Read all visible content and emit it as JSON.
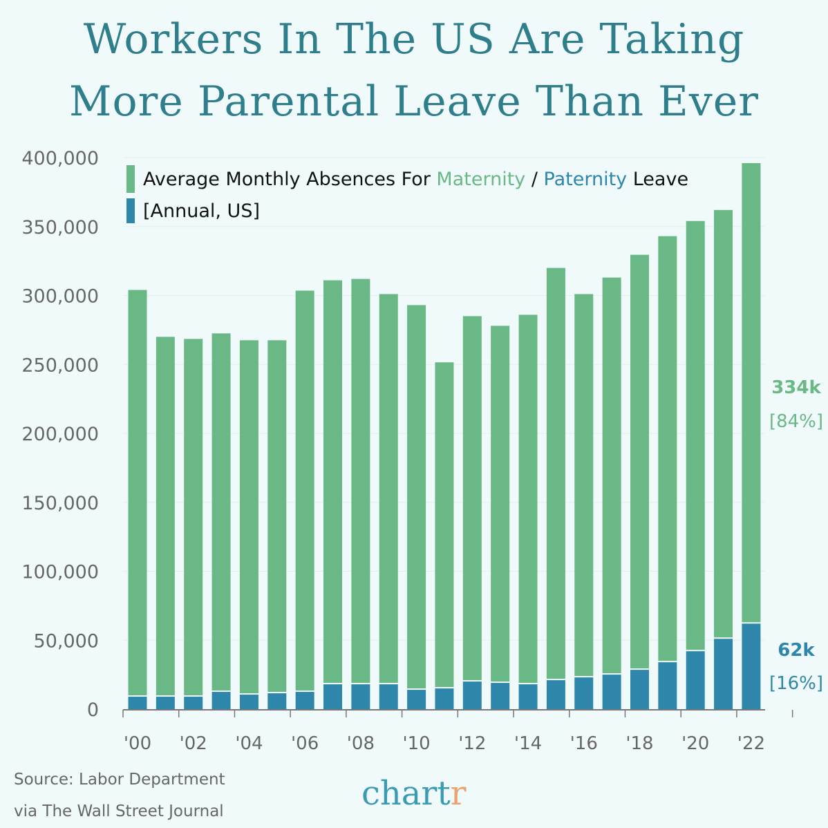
{
  "title": {
    "line1": "Workers In The US Are Taking",
    "line2": "More Parental Leave Than Ever"
  },
  "legend": {
    "prefix": "Average Monthly Absences For ",
    "maternity": "Maternity",
    "sep": " / ",
    "paternity": "Paternity",
    "suffix": " Leave",
    "subtitle": "[Annual, US]"
  },
  "end_labels": {
    "maternity_value": "334k",
    "maternity_share": "[84%]",
    "paternity_value": "62k",
    "paternity_share": "[16%]"
  },
  "source": {
    "line1": "Source: Labor Department",
    "line2": "via The Wall Street Journal"
  },
  "logo": {
    "main": "chart",
    "accent": "r"
  },
  "colors": {
    "maternity": "#69b886",
    "paternity": "#2f86ab",
    "title": "#2f7e8b",
    "background": "#f1fafa"
  },
  "chart_data": {
    "type": "bar",
    "stacked": true,
    "categories": [
      "2000",
      "2001",
      "2002",
      "2003",
      "2004",
      "2005",
      "2006",
      "2007",
      "2008",
      "2009",
      "2010",
      "2011",
      "2012",
      "2013",
      "2014",
      "2015",
      "2016",
      "2017",
      "2018",
      "2019",
      "2020",
      "2021",
      "2022"
    ],
    "x_tick_labels": [
      "'00",
      "'02",
      "'04",
      "'06",
      "'08",
      "'10",
      "'12",
      "'14",
      "'16",
      "'18",
      "'20",
      "'22"
    ],
    "y_tick_labels": [
      "0",
      "50,000",
      "100,000",
      "150,000",
      "200,000",
      "250,000",
      "300,000",
      "350,000",
      "400,000"
    ],
    "ylim": [
      0,
      400000
    ],
    "grid": true,
    "series": [
      {
        "name": "Paternity",
        "values": [
          9000,
          9000,
          9000,
          12500,
          10500,
          11500,
          12500,
          18000,
          18000,
          18000,
          14000,
          15000,
          20000,
          19000,
          18000,
          21000,
          23000,
          25000,
          28500,
          34000,
          42000,
          51000,
          62000
        ]
      },
      {
        "name": "Maternity",
        "values": [
          295000,
          261000,
          259500,
          260000,
          257000,
          256000,
          291000,
          293000,
          294000,
          283000,
          279000,
          236500,
          265000,
          259000,
          268000,
          299000,
          278000,
          288000,
          301000,
          309000,
          312000,
          311000,
          334000
        ]
      }
    ]
  }
}
